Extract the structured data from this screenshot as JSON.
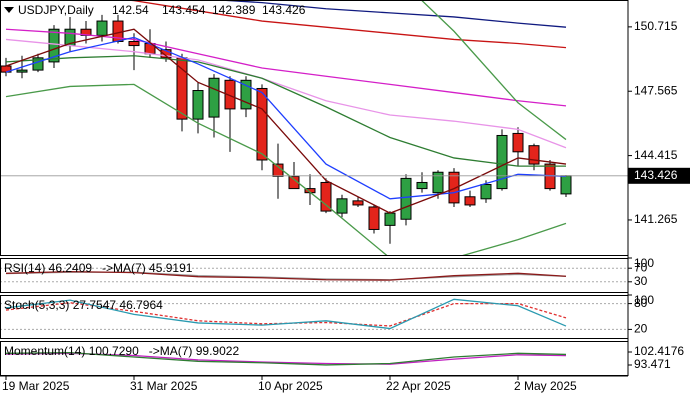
{
  "chart_data": [
    {
      "type": "candlestick",
      "title": "USDJPY,Daily",
      "categories": [
        "19 Mar 2025",
        null,
        null,
        null,
        null,
        null,
        null,
        null,
        "31 Mar 2025",
        null,
        null,
        null,
        null,
        null,
        null,
        null,
        "10 Apr 2025",
        null,
        null,
        null,
        null,
        null,
        null,
        null,
        "22 Apr 2025",
        null,
        null,
        null,
        null,
        null,
        null,
        null,
        "2 May 2025",
        null,
        null,
        null
      ],
      "open": [
        148.8,
        148.5,
        148.6,
        149.0,
        149.8,
        150.6,
        150.3,
        151.0,
        150.0,
        149.9,
        149.6,
        149.2,
        146.2,
        146.3,
        148.1,
        146.7,
        147.7,
        144.0,
        143.4,
        142.8,
        143.1,
        141.6,
        142.2,
        141.9,
        141.0,
        141.3,
        142.8,
        142.6,
        143.6,
        142.4,
        142.3,
        142.8,
        145.5,
        144.9,
        144.0,
        142.54
      ],
      "high": [
        149.2,
        149.3,
        149.4,
        150.8,
        151.2,
        151.0,
        151.3,
        151.3,
        150.4,
        150.6,
        150.0,
        149.4,
        148.0,
        148.4,
        148.3,
        148.3,
        147.9,
        145.0,
        144.1,
        143.5,
        143.3,
        142.5,
        142.4,
        142.0,
        141.7,
        143.5,
        143.6,
        143.7,
        143.8,
        142.7,
        143.2,
        145.7,
        145.8,
        145.0,
        144.2,
        143.454
      ],
      "low": [
        148.3,
        148.2,
        148.5,
        148.7,
        149.5,
        149.9,
        150.0,
        149.9,
        148.6,
        149.2,
        149.0,
        145.6,
        145.5,
        145.3,
        144.6,
        146.3,
        143.7,
        142.3,
        142.8,
        142.0,
        141.6,
        141.4,
        141.9,
        140.6,
        140.1,
        141.0,
        142.6,
        142.3,
        141.9,
        141.9,
        142.1,
        142.7,
        143.9,
        143.7,
        142.7,
        142.389
      ],
      "close": [
        148.5,
        148.6,
        149.2,
        150.6,
        150.6,
        150.3,
        151.0,
        150.0,
        149.8,
        149.4,
        149.2,
        146.2,
        147.6,
        148.2,
        146.7,
        148.1,
        144.2,
        143.4,
        142.8,
        142.6,
        141.7,
        142.3,
        142.0,
        140.8,
        141.6,
        143.3,
        143.1,
        143.6,
        142.1,
        142.0,
        143.0,
        145.4,
        144.6,
        144.0,
        142.8,
        143.426
      ],
      "bull_color": "#2ea043",
      "bear_color": "#e3241b",
      "xlim": [
        -0.375,
        38.875
      ],
      "ylim": [
        139.55,
        152.03
      ],
      "yticks": [
        141.265,
        144.415,
        147.565,
        150.715
      ],
      "grid": false,
      "overlays": {
        "x": [
          0,
          4,
          8,
          12,
          16,
          20,
          24,
          28,
          32,
          35
        ],
        "series": [
          {
            "color": "#101a80",
            "values": [
              152.9,
              152.7,
              152.4,
              152.1,
              151.9,
              151.6,
              151.4,
              151.2,
              150.9,
              150.7
            ]
          },
          {
            "color": "#c81414",
            "values": [
              152.6,
              152.3,
              152.0,
              151.5,
              151.0,
              150.7,
              150.4,
              150.1,
              149.9,
              149.7
            ]
          },
          {
            "color": "#d41fc8",
            "values": [
              150.6,
              150.4,
              150.1,
              149.4,
              148.7,
              148.3,
              147.9,
              147.5,
              147.1,
              146.85
            ]
          },
          {
            "color": "#e894e8",
            "values": [
              150.1,
              149.8,
              149.5,
              149.1,
              148.2,
              147.1,
              146.4,
              146.1,
              145.7,
              144.8
            ]
          },
          {
            "color": "#4a9a4a",
            "values": [
              152.8,
              152.8,
              152.6,
              152.4,
              152.6,
              153.5,
              153.5,
              150.5,
              147.0,
              145.2
            ]
          },
          {
            "color": "#4a9a4a",
            "values": [
              147.3,
              147.8,
              147.9,
              146.0,
              144.5,
              142.0,
              139.4,
              139.4,
              140.3,
              141.1
            ]
          },
          {
            "color": "#2e7d32",
            "values": [
              149.0,
              149.2,
              149.3,
              149.0,
              148.2,
              146.8,
              145.3,
              144.3,
              143.9,
              143.9
            ]
          },
          {
            "color": "#1f3fff",
            "values": [
              148.5,
              149.5,
              150.2,
              148.9,
              147.5,
              144.0,
              142.3,
              142.6,
              143.5,
              143.4
            ]
          },
          {
            "color": "#7a0a0a",
            "values": [
              148.8,
              149.9,
              150.6,
              148.0,
              146.7,
              143.2,
              141.6,
              142.8,
              144.3,
              144.0
            ]
          }
        ]
      }
    },
    {
      "type": "line",
      "title": "RSI(14) 46.2409   ->MA(7) 45.9191",
      "x": [
        0,
        4,
        8,
        12,
        16,
        20,
        24,
        28,
        32,
        35
      ],
      "xlim": [
        -0.375,
        38.875
      ],
      "series": [
        {
          "color": "#9a9a9a",
          "values": [
            54,
            58,
            58,
            48,
            44,
            38,
            36,
            45,
            52,
            45.9191
          ]
        },
        {
          "color": "#8b1a1a",
          "values": [
            55,
            60,
            57,
            45,
            42,
            36,
            35,
            48,
            55,
            46.2409
          ]
        }
      ],
      "ylim": [
        0,
        100
      ],
      "yticks": [
        30,
        70,
        100
      ],
      "grid": true
    },
    {
      "type": "line",
      "title": "Stoch(5,3,3) 27.7547 46.7964",
      "x": [
        0,
        4,
        8,
        12,
        16,
        20,
        24,
        28,
        32,
        35
      ],
      "xlim": [
        -0.375,
        38.875
      ],
      "series": [
        {
          "color": "#e03030",
          "dash": true,
          "values": [
            65,
            82,
            62,
            40,
            33,
            36,
            28,
            80,
            80,
            46.7964
          ]
        },
        {
          "color": "#2a9ab0",
          "values": [
            70,
            88,
            55,
            35,
            30,
            40,
            22,
            90,
            75,
            27.7547
          ]
        }
      ],
      "ylim": [
        0,
        100
      ],
      "yticks": [
        20,
        80,
        100
      ],
      "grid": true
    },
    {
      "type": "line",
      "title": "Momentum(14) 100.7290   ->MA(7) 99.9022",
      "x": [
        0,
        4,
        8,
        12,
        16,
        20,
        24,
        28,
        32,
        35
      ],
      "xlim": [
        -0.375,
        38.875
      ],
      "series": [
        {
          "color": "#c020c0",
          "values": [
            101.0,
            101.5,
            100.0,
            97.0,
            95.5,
            94.5,
            94.0,
            97.5,
            100.5,
            99.9022
          ]
        },
        {
          "color": "#2e7d32",
          "values": [
            101.5,
            102.0,
            99.0,
            96.0,
            95.0,
            93.5,
            94.5,
            99.0,
            101.5,
            100.729
          ]
        }
      ],
      "ylim": [
        86.59,
        109.99
      ],
      "yticks": [
        93.471,
        102.4176
      ],
      "grid": false
    }
  ]
}
